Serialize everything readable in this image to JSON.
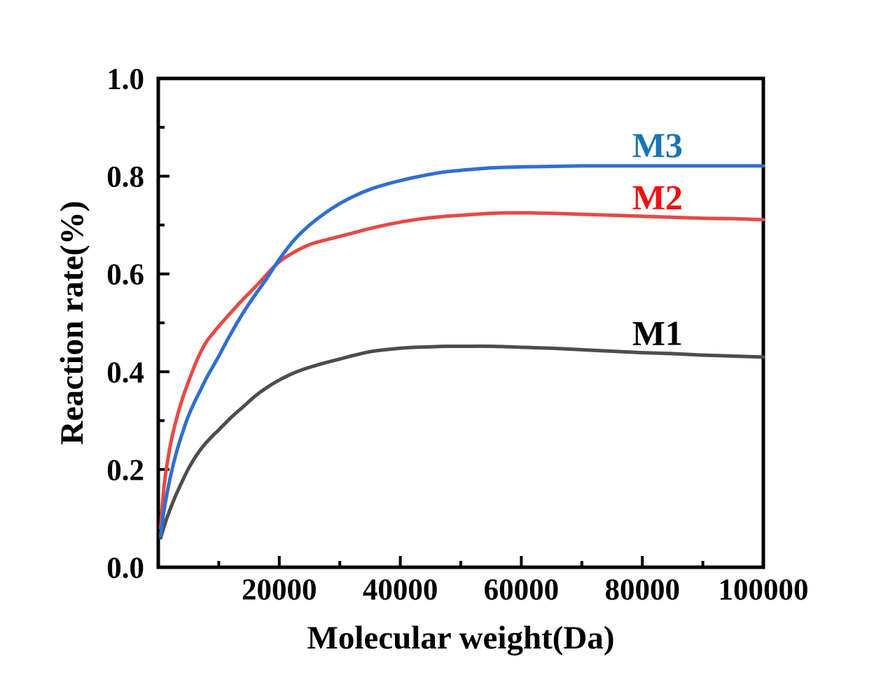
{
  "figure": {
    "background_color": "#ffffff",
    "axis_color": "#000000"
  },
  "chart_data": {
    "type": "line",
    "title": "",
    "xlabel": "Molecular weight(Da)",
    "ylabel": "Reaction rate(%)",
    "xlim": [
      0,
      100000
    ],
    "ylim": [
      0.0,
      1.0
    ],
    "grid": false,
    "legend_position": "inline-labels-right",
    "x_major_ticks": [
      20000,
      40000,
      60000,
      80000,
      100000
    ],
    "x_tick_labels": [
      "20000",
      "40000",
      "60000",
      "80000",
      "100000"
    ],
    "x_minor_ticks": [
      10000,
      30000,
      50000,
      70000,
      90000
    ],
    "y_major_ticks": [
      0.0,
      0.2,
      0.4,
      0.6,
      0.8,
      1.0
    ],
    "y_tick_labels": [
      "0.0",
      "0.2",
      "0.4",
      "0.6",
      "0.8",
      "1.0"
    ],
    "y_minor_ticks": [
      0.1,
      0.3,
      0.5,
      0.7,
      0.9
    ],
    "x": [
      400,
      1000,
      2000,
      3000,
      4000,
      5000,
      6000,
      7000,
      8000,
      9000,
      10000,
      12000,
      14000,
      16000,
      18000,
      20000,
      22500,
      25000,
      27500,
      30000,
      32500,
      35000,
      37500,
      40000,
      42500,
      45000,
      47500,
      50000,
      55000,
      60000,
      65000,
      70000,
      75000,
      80000,
      85000,
      90000,
      95000,
      100000
    ],
    "series": [
      {
        "name": "M1",
        "line_color": "#4d4d4d",
        "label_color": "#000000",
        "label_x": 82500,
        "label_y": 0.479,
        "y": [
          0.06,
          0.085,
          0.12,
          0.15,
          0.177,
          0.202,
          0.223,
          0.241,
          0.256,
          0.269,
          0.281,
          0.306,
          0.328,
          0.35,
          0.368,
          0.383,
          0.398,
          0.409,
          0.418,
          0.426,
          0.434,
          0.441,
          0.445,
          0.448,
          0.45,
          0.451,
          0.452,
          0.452,
          0.452,
          0.45,
          0.448,
          0.445,
          0.442,
          0.439,
          0.437,
          0.434,
          0.432,
          0.43
        ]
      },
      {
        "name": "M2",
        "line_color": "#e64a45",
        "label_color": "#ee1111",
        "label_x": 82500,
        "label_y": 0.757,
        "y": [
          0.08,
          0.17,
          0.25,
          0.303,
          0.345,
          0.38,
          0.412,
          0.44,
          0.462,
          0.478,
          0.493,
          0.521,
          0.548,
          0.573,
          0.6,
          0.625,
          0.645,
          0.66,
          0.669,
          0.677,
          0.685,
          0.693,
          0.7,
          0.706,
          0.711,
          0.715,
          0.718,
          0.72,
          0.724,
          0.725,
          0.724,
          0.722,
          0.72,
          0.718,
          0.716,
          0.714,
          0.713,
          0.711
        ]
      },
      {
        "name": "M3",
        "line_color": "#2f6fd2",
        "label_color": "#1b74b6",
        "label_x": 82500,
        "label_y": 0.864,
        "y": [
          0.065,
          0.12,
          0.185,
          0.235,
          0.275,
          0.31,
          0.338,
          0.363,
          0.388,
          0.41,
          0.432,
          0.478,
          0.52,
          0.557,
          0.592,
          0.63,
          0.67,
          0.7,
          0.724,
          0.744,
          0.76,
          0.773,
          0.783,
          0.791,
          0.798,
          0.804,
          0.809,
          0.812,
          0.817,
          0.819,
          0.82,
          0.821,
          0.821,
          0.821,
          0.821,
          0.821,
          0.821,
          0.821
        ]
      }
    ]
  }
}
